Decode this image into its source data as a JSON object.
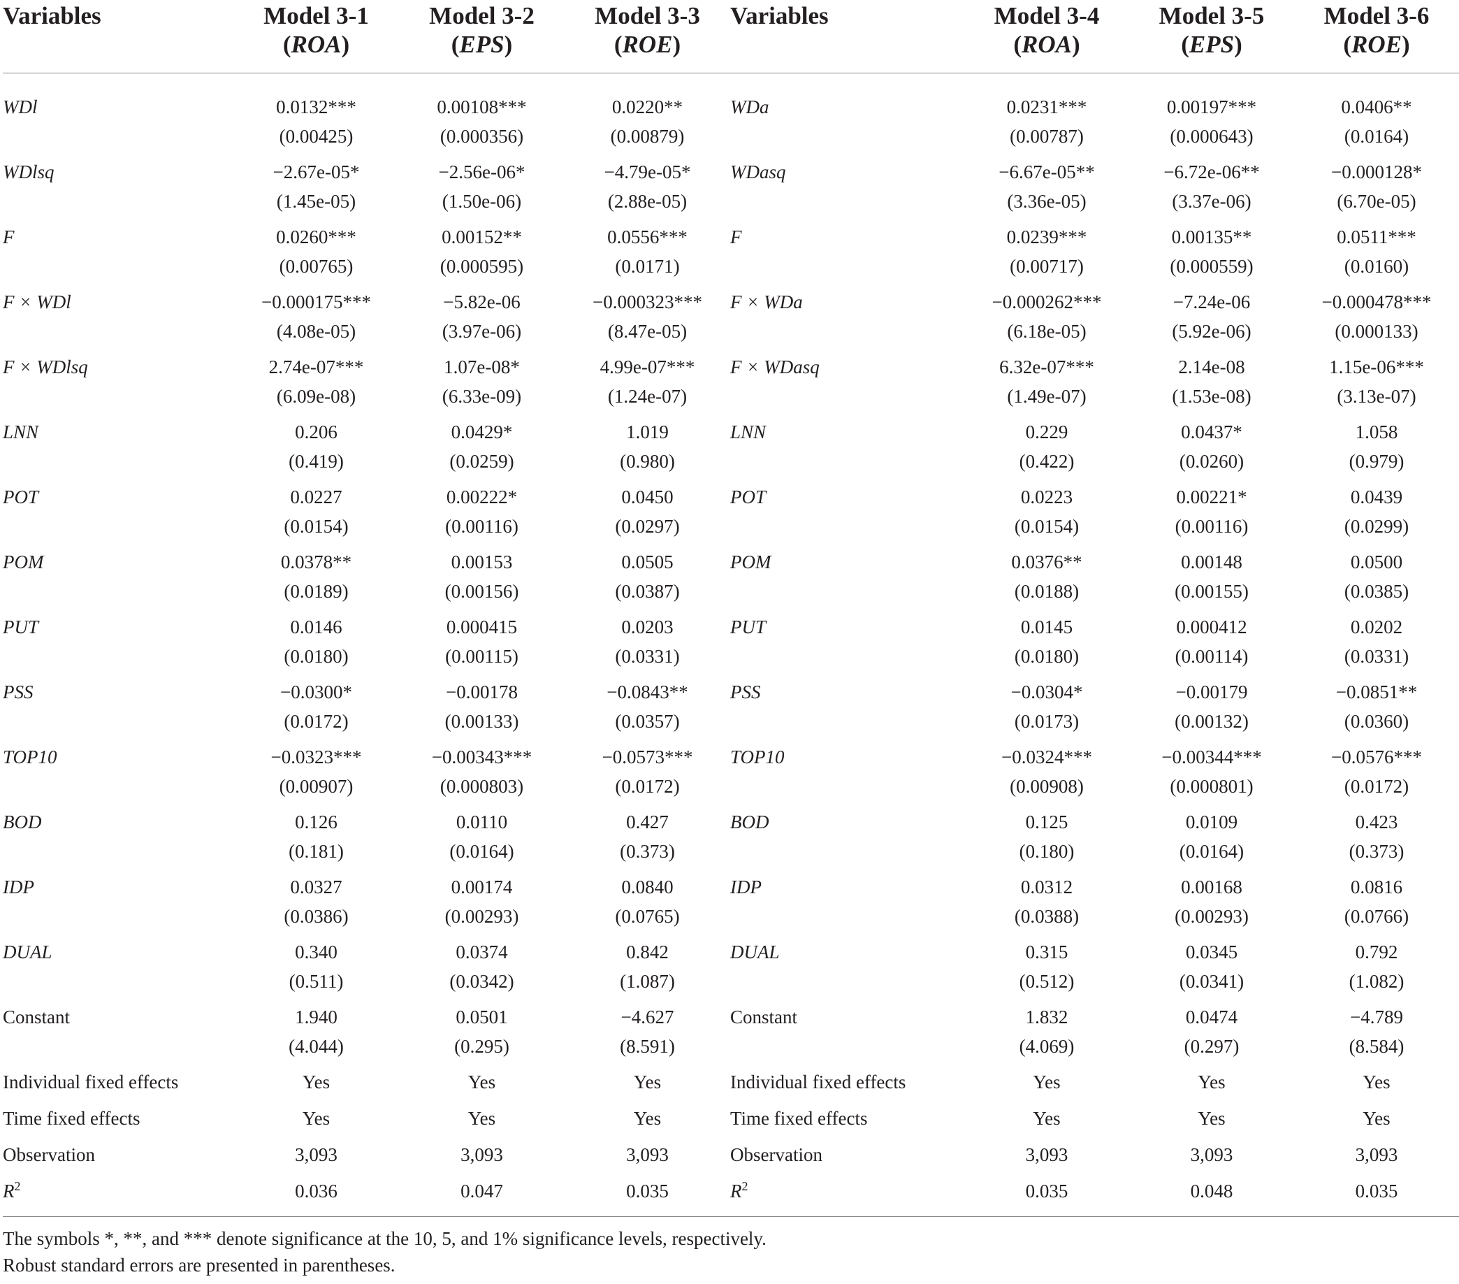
{
  "header": {
    "variables_label": "Variables",
    "models": [
      {
        "name": "Model 3-1",
        "dv": "ROA"
      },
      {
        "name": "Model 3-2",
        "dv": "EPS"
      },
      {
        "name": "Model 3-3",
        "dv": "ROE"
      },
      {
        "name": "Model 3-4",
        "dv": "ROA"
      },
      {
        "name": "Model 3-5",
        "dv": "EPS"
      },
      {
        "name": "Model 3-6",
        "dv": "ROE"
      }
    ]
  },
  "rows": [
    {
      "left": "WDl",
      "right": "WDa",
      "coef": [
        "0.0132***",
        "0.00108***",
        "0.0220**",
        "0.0231***",
        "0.00197***",
        "0.0406**"
      ],
      "se": [
        "(0.00425)",
        "(0.000356)",
        "(0.00879)",
        "(0.00787)",
        "(0.000643)",
        "(0.0164)"
      ]
    },
    {
      "left": "WDlsq",
      "right": "WDasq",
      "coef": [
        "−2.67e-05*",
        "−2.56e-06*",
        "−4.79e-05*",
        "−6.67e-05**",
        "−6.72e-06**",
        "−0.000128*"
      ],
      "se": [
        "(1.45e-05)",
        "(1.50e-06)",
        "(2.88e-05)",
        "(3.36e-05)",
        "(3.37e-06)",
        "(6.70e-05)"
      ]
    },
    {
      "left": "F",
      "right": "F",
      "coef": [
        "0.0260***",
        "0.00152**",
        "0.0556***",
        "0.0239***",
        "0.00135**",
        "0.0511***"
      ],
      "se": [
        "(0.00765)",
        "(0.000595)",
        "(0.0171)",
        "(0.00717)",
        "(0.000559)",
        "(0.0160)"
      ]
    },
    {
      "left": "F × WDl",
      "right": "F × WDa",
      "coef": [
        "−0.000175***",
        "−5.82e-06",
        "−0.000323***",
        "−0.000262***",
        "−7.24e-06",
        "−0.000478***"
      ],
      "se": [
        "(4.08e-05)",
        "(3.97e-06)",
        "(8.47e-05)",
        "(6.18e-05)",
        "(5.92e-06)",
        "(0.000133)"
      ]
    },
    {
      "left": "F × WDlsq",
      "right": "F × WDasq",
      "coef": [
        "2.74e-07***",
        "1.07e-08*",
        "4.99e-07***",
        "6.32e-07***",
        "2.14e-08",
        "1.15e-06***"
      ],
      "se": [
        "(6.09e-08)",
        "(6.33e-09)",
        "(1.24e-07)",
        "(1.49e-07)",
        "(1.53e-08)",
        "(3.13e-07)"
      ]
    },
    {
      "left": "LNN",
      "right": "LNN",
      "coef": [
        "0.206",
        "0.0429*",
        "1.019",
        "0.229",
        "0.0437*",
        "1.058"
      ],
      "se": [
        "(0.419)",
        "(0.0259)",
        "(0.980)",
        "(0.422)",
        "(0.0260)",
        "(0.979)"
      ]
    },
    {
      "left": "POT",
      "right": "POT",
      "coef": [
        "0.0227",
        "0.00222*",
        "0.0450",
        "0.0223",
        "0.00221*",
        "0.0439"
      ],
      "se": [
        "(0.0154)",
        "(0.00116)",
        "(0.0297)",
        "(0.0154)",
        "(0.00116)",
        "(0.0299)"
      ]
    },
    {
      "left": "POM",
      "right": "POM",
      "coef": [
        "0.0378**",
        "0.00153",
        "0.0505",
        "0.0376**",
        "0.00148",
        "0.0500"
      ],
      "se": [
        "(0.0189)",
        "(0.00156)",
        "(0.0387)",
        "(0.0188)",
        "(0.00155)",
        "(0.0385)"
      ]
    },
    {
      "left": "PUT",
      "right": "PUT",
      "coef": [
        "0.0146",
        "0.000415",
        "0.0203",
        "0.0145",
        "0.000412",
        "0.0202"
      ],
      "se": [
        "(0.0180)",
        "(0.00115)",
        "(0.0331)",
        "(0.0180)",
        "(0.00114)",
        "(0.0331)"
      ]
    },
    {
      "left": "PSS",
      "right": "PSS",
      "coef": [
        "−0.0300*",
        "−0.00178",
        "−0.0843**",
        "−0.0304*",
        "−0.00179",
        "−0.0851**"
      ],
      "se": [
        "(0.0172)",
        "(0.00133)",
        "(0.0357)",
        "(0.0173)",
        "(0.00132)",
        "(0.0360)"
      ]
    },
    {
      "left": "TOP10",
      "right": "TOP10",
      "coef": [
        "−0.0323***",
        "−0.00343***",
        "−0.0573***",
        "−0.0324***",
        "−0.00344***",
        "−0.0576***"
      ],
      "se": [
        "(0.00907)",
        "(0.000803)",
        "(0.0172)",
        "(0.00908)",
        "(0.000801)",
        "(0.0172)"
      ]
    },
    {
      "left": "BOD",
      "right": "BOD",
      "coef": [
        "0.126",
        "0.0110",
        "0.427",
        "0.125",
        "0.0109",
        "0.423"
      ],
      "se": [
        "(0.181)",
        "(0.0164)",
        "(0.373)",
        "(0.180)",
        "(0.0164)",
        "(0.373)"
      ]
    },
    {
      "left": "IDP",
      "right": "IDP",
      "coef": [
        "0.0327",
        "0.00174",
        "0.0840",
        "0.0312",
        "0.00168",
        "0.0816"
      ],
      "se": [
        "(0.0386)",
        "(0.00293)",
        "(0.0765)",
        "(0.0388)",
        "(0.00293)",
        "(0.0766)"
      ]
    },
    {
      "left": "DUAL",
      "right": "DUAL",
      "coef": [
        "0.340",
        "0.0374",
        "0.842",
        "0.315",
        "0.0345",
        "0.792"
      ],
      "se": [
        "(0.511)",
        "(0.0342)",
        "(1.087)",
        "(0.512)",
        "(0.0341)",
        "(1.082)"
      ]
    },
    {
      "left": "Constant",
      "right": "Constant",
      "coef": [
        "1.940",
        "0.0501",
        "−4.627",
        "1.832",
        "0.0474",
        "−4.789"
      ],
      "se": [
        "(4.044)",
        "(0.295)",
        "(8.591)",
        "(4.069)",
        "(0.297)",
        "(8.584)"
      ]
    }
  ],
  "stats": [
    {
      "label": "Individual fixed effects",
      "values": [
        "Yes",
        "Yes",
        "Yes",
        "Yes",
        "Yes",
        "Yes"
      ]
    },
    {
      "label": "Time fixed effects",
      "values": [
        "Yes",
        "Yes",
        "Yes",
        "Yes",
        "Yes",
        "Yes"
      ]
    },
    {
      "label": "Observation",
      "values": [
        "3,093",
        "3,093",
        "3,093",
        "3,093",
        "3,093",
        "3,093"
      ]
    }
  ],
  "r2": {
    "label": "R",
    "sup": "2",
    "values": [
      "0.036",
      "0.047",
      "0.035",
      "0.035",
      "0.048",
      "0.035"
    ]
  },
  "notes": [
    "The symbols *, **, and *** denote significance at the 10, 5, and 1% significance levels, respectively.",
    "Robust standard errors are presented in parentheses."
  ]
}
